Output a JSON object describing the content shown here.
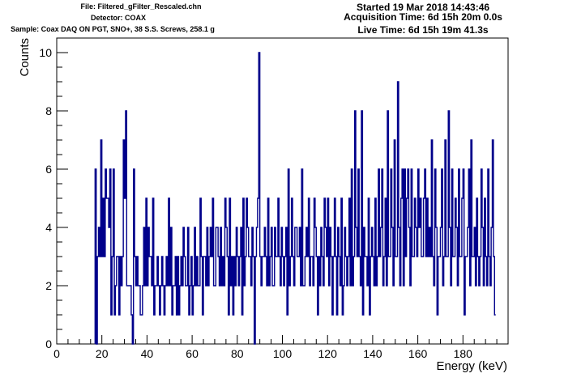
{
  "header": {
    "file": "File: Filtered_gFilter_Rescaled.chn",
    "detector": "Detector: COAX",
    "sample": "Sample: Coax DAQ ON PGT, SNO+, 38 S.S. Screws, 258.1 g",
    "started": "Started 19 Mar 2018 14:43:46",
    "acq_time": "Acquisition Time: 6d 15h 20m 0.0s",
    "live_time": "Live Time: 6d 15h 19m 41.3s"
  },
  "colors": {
    "series": "#00008b",
    "axis": "#000000",
    "background": "#ffffff"
  },
  "chart_data": {
    "type": "histogram",
    "xlabel": "Energy (keV)",
    "ylabel": "Counts",
    "xlim": [
      0,
      200
    ],
    "ylim": [
      0,
      10.5
    ],
    "x_ticks": [
      0,
      20,
      40,
      60,
      80,
      100,
      120,
      140,
      160,
      180
    ],
    "y_ticks": [
      0,
      2,
      4,
      6,
      8,
      10
    ],
    "grid": false,
    "legend": "none",
    "bin_width": 0.5,
    "x_start": 17,
    "series": [
      {
        "values": [
          6,
          0,
          3,
          4,
          3,
          7,
          3,
          5,
          3,
          6,
          5,
          5,
          4,
          6,
          1,
          3,
          6,
          1,
          2,
          3,
          3,
          1,
          3,
          2,
          3,
          7,
          5,
          8,
          2,
          2,
          2,
          2,
          1,
          0,
          6,
          3,
          2,
          3,
          2,
          2,
          1,
          1,
          2,
          4,
          2,
          5,
          2,
          4,
          3,
          3,
          2,
          5,
          1,
          2,
          2,
          3,
          2,
          1,
          2,
          3,
          2,
          1,
          2,
          3,
          2,
          5,
          2,
          4,
          1,
          2,
          2,
          3,
          1,
          3,
          1,
          2,
          3,
          2,
          4,
          3,
          2,
          2,
          4,
          1,
          2,
          3,
          1,
          2,
          4,
          2,
          3,
          2,
          2,
          5,
          3,
          1,
          3,
          3,
          2,
          4,
          2,
          3,
          4,
          3,
          5,
          2,
          2,
          4,
          4,
          3,
          2,
          4,
          2,
          3,
          2,
          5,
          4,
          3,
          1,
          5,
          2,
          3,
          1,
          3,
          2,
          4,
          3,
          2,
          3,
          4,
          1,
          5,
          2,
          3,
          5,
          4,
          3,
          3,
          2,
          4,
          3,
          0,
          3,
          4,
          5,
          10,
          3,
          2,
          3,
          3,
          4,
          3,
          2,
          5,
          2,
          3,
          4,
          2,
          2,
          4,
          3,
          3,
          5,
          3,
          2,
          4,
          3,
          2,
          3,
          4,
          1,
          6,
          2,
          3,
          5,
          3,
          2,
          4,
          4,
          3,
          3,
          4,
          2,
          6,
          2,
          2,
          3,
          4,
          3,
          5,
          2,
          3,
          3,
          2,
          5,
          4,
          3,
          1,
          3,
          2,
          4,
          3,
          2,
          5,
          4,
          3,
          5,
          2,
          4,
          3,
          1,
          3,
          5,
          3,
          1,
          4,
          3,
          2,
          5,
          1,
          2,
          4,
          3,
          2,
          3,
          5,
          2,
          6,
          2,
          3,
          8,
          4,
          3,
          6,
          3,
          2,
          8,
          1,
          4,
          3,
          3,
          2,
          5,
          1,
          3,
          4,
          3,
          2,
          5,
          2,
          3,
          6,
          3,
          4,
          6,
          2,
          3,
          5,
          2,
          8,
          3,
          3,
          6,
          4,
          2,
          7,
          3,
          3,
          9,
          4,
          2,
          5,
          6,
          2,
          6,
          3,
          5,
          6,
          4,
          2,
          6,
          3,
          3,
          5,
          4,
          3,
          6,
          4,
          5,
          3,
          3,
          5,
          6,
          3,
          5,
          3,
          4,
          3,
          7,
          3,
          2,
          6,
          4,
          1,
          3,
          3,
          4,
          6,
          2,
          3,
          7,
          3,
          3,
          8,
          4,
          2,
          6,
          3,
          3,
          5,
          4,
          2,
          6,
          3,
          3,
          5,
          6,
          1,
          3,
          3,
          4,
          6,
          2,
          7,
          3,
          3,
          4,
          2,
          5,
          3,
          2,
          3,
          6,
          4,
          2,
          5,
          3,
          2,
          6,
          3,
          2,
          4,
          7,
          3,
          1
        ]
      }
    ]
  }
}
